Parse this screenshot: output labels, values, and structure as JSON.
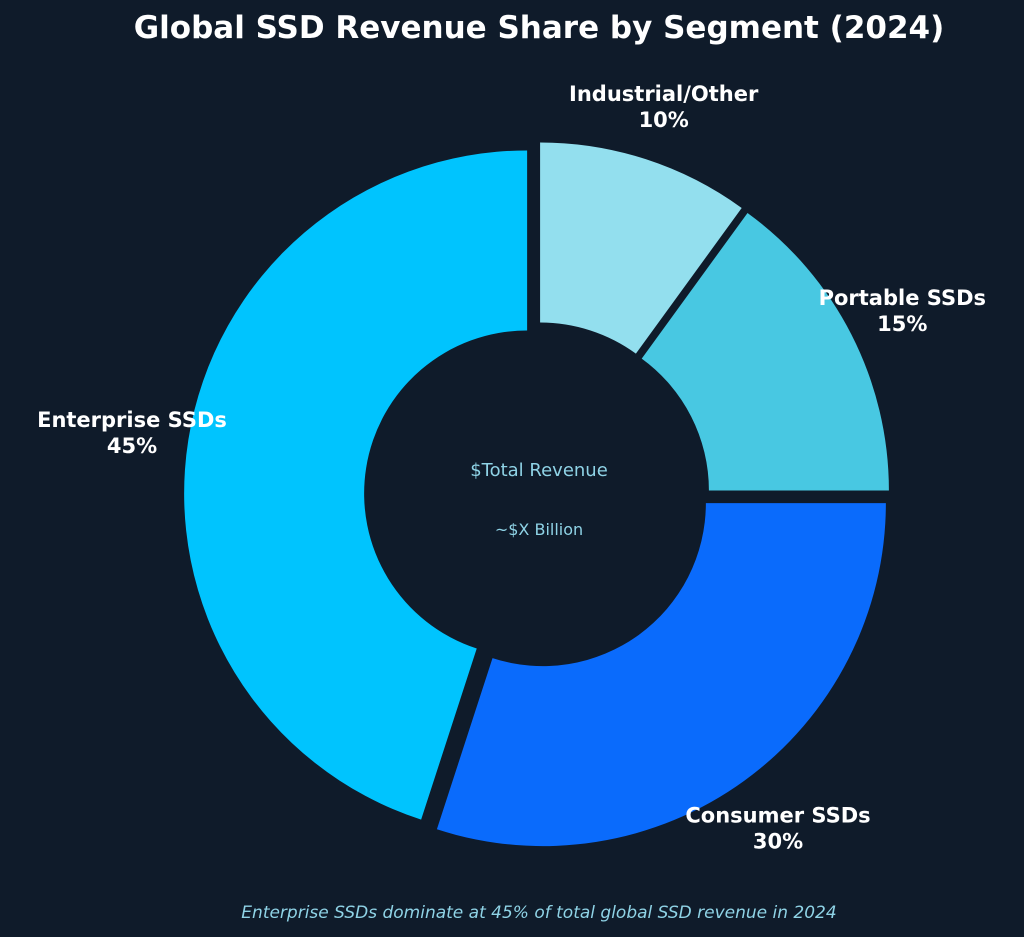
{
  "chart_data": {
    "type": "pie",
    "title": "Global SSD Revenue Share by Segment (2024)",
    "slices": [
      {
        "label": "Industrial/Other",
        "value": 10,
        "value_label": "10%",
        "color": "#93dfee"
      },
      {
        "label": "Portable SSDs",
        "value": 15,
        "value_label": "15%",
        "color": "#48c8e2"
      },
      {
        "label": "Consumer SSDs",
        "value": 30,
        "value_label": "30%",
        "color": "#0a6bfc"
      },
      {
        "label": "Enterprise SSDs",
        "value": 45,
        "value_label": "45%",
        "color": "#00c4fe"
      }
    ],
    "center_text": "$Total Revenue",
    "center_subtext": "~$X Billion",
    "caption": "Enterprise SSDs dominate at 45% of total global SSD revenue in 2024"
  },
  "colors": {
    "background": "#0f1b2a",
    "text": "#ffffff",
    "accent_text": "#8fd3e6"
  }
}
